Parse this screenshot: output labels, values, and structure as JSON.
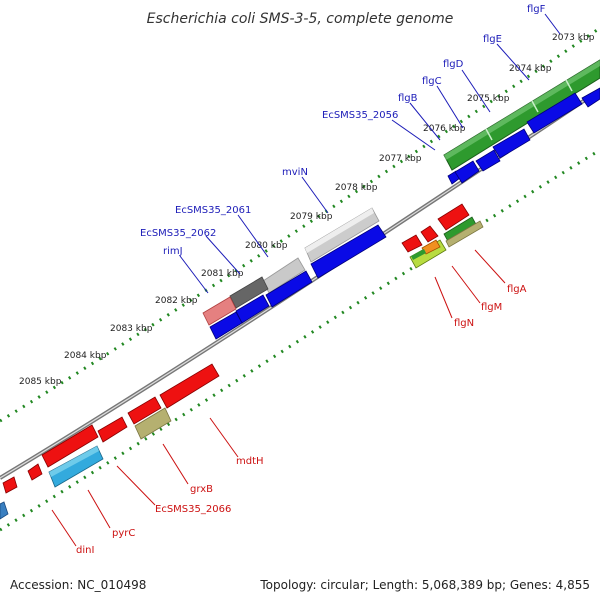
{
  "title": "Escherichia coli SMS-3-5, complete genome",
  "footer": {
    "accession": "Accession: NC_010498",
    "stats": "Topology: circular; Length: 5,068,389 bp; Genes: 4,855"
  },
  "colors": {
    "backbone": "#777777",
    "ticks": "#228822",
    "label_blue": "#1c1cb8",
    "label_red": "#cc1111",
    "flagella_green": "#2e9a2e",
    "forward_blue": "#0a0ae6",
    "reverse_red": "#ee1111",
    "grey": "#bbbbbb",
    "dark_grey": "#666666",
    "salmon": "#e58080",
    "cyan": "#33aadd",
    "olive": "#b5b070",
    "yellow_green": "#b8dc40",
    "orange": "#f09020"
  },
  "kbp_ticks": [
    {
      "label": "2073 kbp"
    },
    {
      "label": "2074 kbp"
    },
    {
      "label": "2075 kbp"
    },
    {
      "label": "2076 kbp"
    },
    {
      "label": "2077 kbp"
    },
    {
      "label": "2078 kbp"
    },
    {
      "label": "2079 kbp"
    },
    {
      "label": "2080 kbp"
    },
    {
      "label": "2081 kbp"
    },
    {
      "label": "2082 kbp"
    },
    {
      "label": "2083 kbp"
    },
    {
      "label": "2084 kbp"
    },
    {
      "label": "2085 kbp"
    }
  ],
  "genes_top": [
    {
      "name": "flgF"
    },
    {
      "name": "flgE"
    },
    {
      "name": "flgD"
    },
    {
      "name": "flgC"
    },
    {
      "name": "flgB"
    },
    {
      "name": "EcSMS35_2056"
    },
    {
      "name": "mviN"
    },
    {
      "name": "EcSMS35_2061"
    },
    {
      "name": "EcSMS35_2062"
    },
    {
      "name": "rimJ"
    }
  ],
  "genes_bottom": [
    {
      "name": "flgA"
    },
    {
      "name": "flgM"
    },
    {
      "name": "flgN"
    },
    {
      "name": "mdtH"
    },
    {
      "name": "grxB"
    },
    {
      "name": "EcSMS35_2066"
    },
    {
      "name": "pyrC"
    },
    {
      "name": "dinI"
    }
  ]
}
